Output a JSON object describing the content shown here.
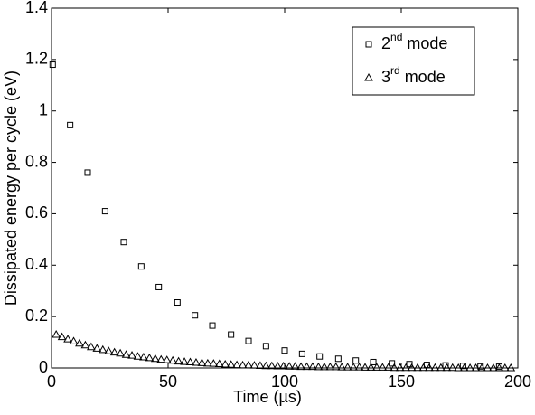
{
  "chart_data": {
    "type": "scatter",
    "xlabel": "Time (µs)",
    "ylabel": "Dissipated energy per cycle (eV)",
    "xlim": [
      0,
      200
    ],
    "ylim": [
      0,
      1.4
    ],
    "xticks": [
      0,
      50,
      100,
      150,
      200
    ],
    "yticks": [
      0,
      0.2,
      0.4,
      0.6,
      0.8,
      1,
      1.2,
      1.4
    ],
    "legend": "upper right",
    "series": [
      {
        "name": "2nd mode",
        "marker": "square",
        "color": "#000000",
        "x": [
          0.5,
          8,
          15.5,
          23,
          31,
          38.5,
          46,
          54,
          61.5,
          69,
          77,
          84.5,
          92,
          100,
          107.5,
          115,
          123,
          130.5,
          138,
          146,
          153.5,
          161,
          169,
          176.5,
          184,
          192
        ],
        "values": [
          1.18,
          0.945,
          0.76,
          0.61,
          0.49,
          0.395,
          0.315,
          0.255,
          0.205,
          0.165,
          0.13,
          0.105,
          0.085,
          0.068,
          0.055,
          0.045,
          0.036,
          0.029,
          0.023,
          0.018,
          0.015,
          0.012,
          0.01,
          0.008,
          0.006,
          0.005
        ]
      },
      {
        "name": "3rd mode",
        "marker": "triangle",
        "color": "#000000",
        "x": [
          2,
          4.5,
          7,
          9.5,
          12,
          14.5,
          17,
          19.5,
          22,
          24.5,
          27,
          29.5,
          32,
          34.5,
          37,
          39.5,
          42,
          44.5,
          47,
          49.5,
          52,
          54.5,
          57,
          59.5,
          62,
          64.5,
          67,
          69.5,
          72,
          74.5,
          77,
          79.5,
          82,
          84.5,
          87,
          89.5,
          92,
          94.5,
          97,
          99.5,
          102,
          104.5,
          107,
          109.5,
          112,
          114.5,
          117,
          119.5,
          122,
          124.5,
          127,
          129.5,
          132,
          134.5,
          137,
          139.5,
          142,
          144.5,
          147,
          149.5,
          152,
          154.5,
          157,
          159.5,
          162,
          164.5,
          167,
          169.5,
          172,
          174.5,
          177,
          179.5,
          182,
          184.5,
          187,
          189.5,
          192,
          194.5,
          197
        ],
        "values": [
          0.13,
          0.121,
          0.112,
          0.104,
          0.096,
          0.089,
          0.082,
          0.076,
          0.071,
          0.066,
          0.061,
          0.057,
          0.052,
          0.049,
          0.045,
          0.042,
          0.039,
          0.036,
          0.033,
          0.031,
          0.029,
          0.026,
          0.024,
          0.023,
          0.021,
          0.02,
          0.018,
          0.017,
          0.016,
          0.014,
          0.013,
          0.012,
          0.011,
          0.011,
          0.01,
          0.009,
          0.008,
          0.008,
          0.007,
          0.007,
          0.006,
          0.006,
          0.005,
          0.005,
          0.005,
          0.004,
          0.004,
          0.004,
          0.004,
          0.003,
          0.003,
          0.003,
          0.003,
          0.002,
          0.002,
          0.002,
          0.002,
          0.002,
          0.001,
          0.001,
          0.001,
          0.001,
          0.001,
          0.001,
          0.001,
          0.001,
          0.001,
          0.001,
          0.001,
          0,
          0,
          0,
          0,
          0,
          0,
          0,
          0,
          0,
          0
        ]
      }
    ]
  }
}
